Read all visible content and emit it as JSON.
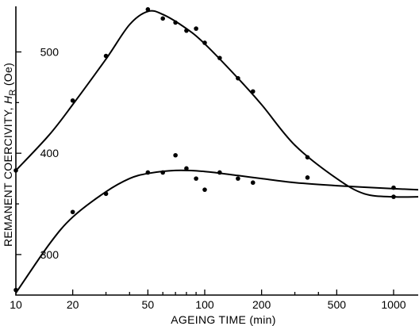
{
  "chart_data": {
    "type": "scatter",
    "title": "",
    "xlabel": "AGEING TIME (min)",
    "ylabel_parts": {
      "prefix": "REMANENT COERCIVITY, ",
      "symbol": "H",
      "subscript": "R",
      "unit": " (Oe)"
    },
    "xscale": "log",
    "xlim": [
      10,
      1350
    ],
    "ylim": [
      260,
      545
    ],
    "xticks": [
      10,
      20,
      50,
      100,
      200,
      500,
      1000
    ],
    "xticklabels": [
      "10",
      "20",
      "50",
      "100",
      "200",
      "500",
      "1000"
    ],
    "xminorticks": [
      30,
      40,
      60,
      70,
      80,
      90,
      300,
      400
    ],
    "yticks": [
      300,
      400,
      500
    ],
    "yticklabels": [
      "300",
      "400",
      "500"
    ],
    "yminorticks": [
      350,
      450
    ],
    "grid": false,
    "series": [
      {
        "points": [
          [
            10,
            383
          ],
          [
            20,
            452
          ],
          [
            30,
            496
          ],
          [
            50,
            542
          ],
          [
            60,
            533
          ],
          [
            70,
            529
          ],
          [
            80,
            521
          ],
          [
            90,
            523
          ],
          [
            100,
            509
          ],
          [
            120,
            494
          ],
          [
            150,
            474
          ],
          [
            180,
            461
          ],
          [
            350,
            396
          ],
          [
            1000,
            357
          ]
        ],
        "curve": [
          [
            10,
            383
          ],
          [
            15,
            418
          ],
          [
            20,
            448
          ],
          [
            30,
            493
          ],
          [
            40,
            527
          ],
          [
            50,
            540
          ],
          [
            60,
            537
          ],
          [
            80,
            523
          ],
          [
            100,
            508
          ],
          [
            150,
            474
          ],
          [
            200,
            448
          ],
          [
            300,
            408
          ],
          [
            500,
            375
          ],
          [
            700,
            360
          ],
          [
            1000,
            357
          ],
          [
            1350,
            357
          ]
        ]
      },
      {
        "points": [
          [
            10,
            265
          ],
          [
            20,
            342
          ],
          [
            30,
            360
          ],
          [
            50,
            381
          ],
          [
            60,
            381
          ],
          [
            70,
            398
          ],
          [
            80,
            385
          ],
          [
            90,
            375
          ],
          [
            100,
            364
          ],
          [
            120,
            381
          ],
          [
            150,
            375
          ],
          [
            180,
            371
          ],
          [
            350,
            376
          ],
          [
            1000,
            366
          ]
        ],
        "curve": [
          [
            10,
            262
          ],
          [
            15,
            310
          ],
          [
            20,
            337
          ],
          [
            30,
            362
          ],
          [
            40,
            375
          ],
          [
            50,
            380
          ],
          [
            70,
            383
          ],
          [
            100,
            382
          ],
          [
            150,
            378
          ],
          [
            200,
            375
          ],
          [
            300,
            371
          ],
          [
            500,
            368
          ],
          [
            1000,
            365
          ],
          [
            1350,
            364
          ]
        ]
      }
    ]
  }
}
